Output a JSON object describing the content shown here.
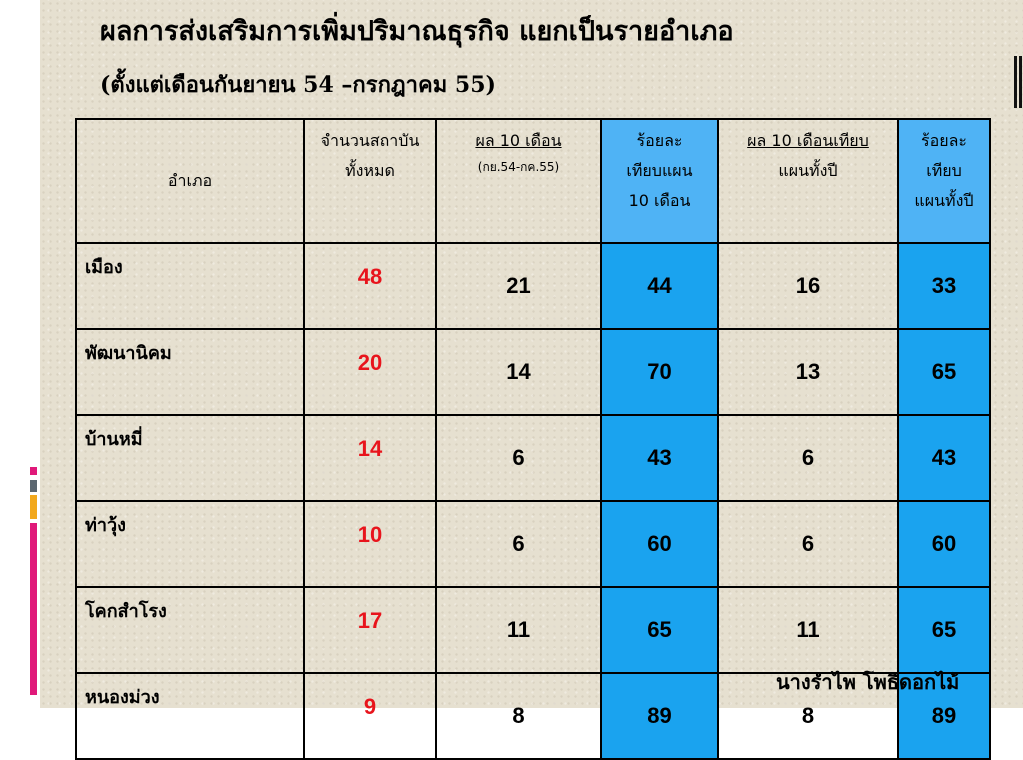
{
  "header": {
    "title": "ผลการส่งเสริมการเพิ่มปริมาณธุรกิจ แยกเป็นรายอำเภอ",
    "subtitle": "(ตั้งแต่เดือนกันยายน 54 –กรกฎาคม 55)"
  },
  "table": {
    "headers": {
      "district": "อำเภอ",
      "total_line1": "จำนวนสถาบัน",
      "total_line2": "ทั้งหมด",
      "result10_line1": "ผล 10 เดือน",
      "result10_line2": "(กย.54-กค.55)",
      "pct10_line1": "ร้อยละ",
      "pct10_line2": "เทียบแผน",
      "pct10_line3": "10 เดือน",
      "resultyear_line1": "ผล 10 เดือนเทียบ",
      "resultyear_line2": "แผนทั้งปี",
      "pctyear_line1": "ร้อยละ",
      "pctyear_line2": "เทียบ",
      "pctyear_line3": "แผนทั้งปี"
    },
    "rows": [
      {
        "district": "เมือง",
        "total": "48",
        "result10": "21",
        "pct10": "44",
        "resultyear": "16",
        "pctyear": "33"
      },
      {
        "district": "พัฒนานิคม",
        "total": "20",
        "result10": "14",
        "pct10": "70",
        "resultyear": "13",
        "pctyear": "65"
      },
      {
        "district": "บ้านหมี่",
        "total": "14",
        "result10": "6",
        "pct10": "43",
        "resultyear": "6",
        "pctyear": "43"
      },
      {
        "district": "ท่าวุ้ง",
        "total": "10",
        "result10": "6",
        "pct10": "60",
        "resultyear": "6",
        "pctyear": "60"
      },
      {
        "district": "โคกสำโรง",
        "total": "17",
        "result10": "11",
        "pct10": "65",
        "resultyear": "11",
        "pctyear": "65"
      },
      {
        "district": "หนองม่วง",
        "total": "9",
        "result10": "8",
        "pct10": "89",
        "resultyear": "8",
        "pctyear": "89"
      }
    ]
  },
  "footer": {
    "author": "นางรำไพ  โพธิดอกไม้"
  },
  "colors": {
    "background": "#e6e0d0",
    "highlight_header": "#4fb3f5",
    "highlight_cell": "#1aa3ef",
    "total_text": "#e8141c",
    "deco_pink": "#e0197a",
    "deco_orange": "#f2a81d",
    "deco_gray": "#5b6670"
  }
}
